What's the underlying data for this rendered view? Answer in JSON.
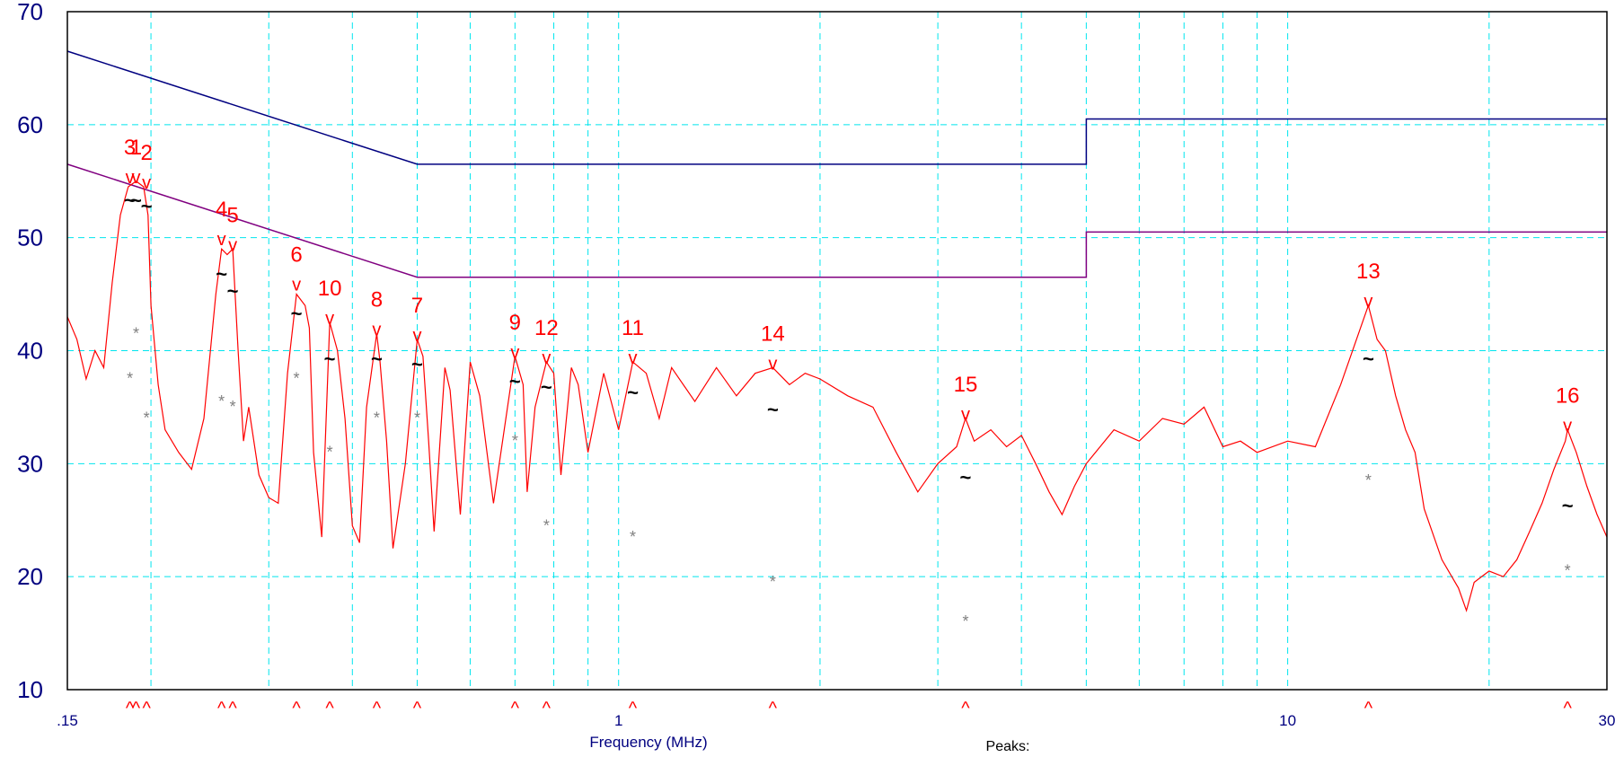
{
  "chart_data": {
    "type": "line",
    "xscale": "log",
    "xlim": [
      0.15,
      30
    ],
    "ylim": [
      10,
      70
    ],
    "xlabel": "Frequency (MHz)",
    "ylabel": "",
    "footer_label": "Peaks:",
    "y_ticks": [
      "10",
      "20",
      "30",
      "40",
      "50",
      "60",
      "70"
    ],
    "x_ticks": [
      {
        "value": 0.15,
        "label": ".15"
      },
      {
        "value": 1,
        "label": "1"
      },
      {
        "value": 10,
        "label": "10"
      },
      {
        "value": 30,
        "label": "30"
      }
    ],
    "grid": true,
    "limit_lines": [
      {
        "color": "#000080",
        "points": [
          [
            0.15,
            66.5
          ],
          [
            0.5,
            56.5
          ],
          [
            5,
            56.5
          ],
          [
            5,
            60.5
          ],
          [
            30,
            60.5
          ]
        ]
      },
      {
        "color": "#800080",
        "points": [
          [
            0.15,
            56.5
          ],
          [
            0.5,
            46.5
          ],
          [
            5,
            46.5
          ],
          [
            5,
            50.5
          ],
          [
            30,
            50.5
          ]
        ]
      }
    ],
    "trace_color": "#ff0000",
    "peaks": [
      {
        "label": "1",
        "f": 0.19,
        "peak": 55,
        "qp": 53.5,
        "avg": 42
      },
      {
        "label": "2",
        "f": 0.197,
        "peak": 54.5,
        "qp": 53,
        "avg": 34.5
      },
      {
        "label": "3",
        "f": 0.186,
        "peak": 55,
        "qp": 53.5,
        "avg": 38
      },
      {
        "label": "4",
        "f": 0.255,
        "peak": 49.5,
        "qp": 47,
        "avg": 36
      },
      {
        "label": "5",
        "f": 0.265,
        "peak": 49,
        "qp": 45.5,
        "avg": 35.5
      },
      {
        "label": "6",
        "f": 0.33,
        "peak": 45.5,
        "qp": 43.5,
        "avg": 38
      },
      {
        "label": "7",
        "f": 0.5,
        "peak": 41,
        "qp": 39,
        "avg": 34.5
      },
      {
        "label": "8",
        "f": 0.435,
        "peak": 41.5,
        "qp": 39.5,
        "avg": 34.5
      },
      {
        "label": "9",
        "f": 0.7,
        "peak": 39.5,
        "qp": 37.5,
        "avg": 32.5
      },
      {
        "label": "10",
        "f": 0.37,
        "peak": 42.5,
        "qp": 39.5,
        "avg": 31.5
      },
      {
        "label": "11",
        "f": 1.05,
        "peak": 39,
        "qp": 36.5,
        "avg": 24
      },
      {
        "label": "12",
        "f": 0.78,
        "peak": 39,
        "qp": 37,
        "avg": 25
      },
      {
        "label": "13",
        "f": 13.2,
        "peak": 44,
        "qp": 39.5,
        "avg": 29
      },
      {
        "label": "14",
        "f": 1.7,
        "peak": 38.5,
        "qp": 35,
        "avg": 20
      },
      {
        "label": "15",
        "f": 3.3,
        "peak": 34,
        "qp": 29,
        "avg": 16.5
      },
      {
        "label": "16",
        "f": 26.2,
        "peak": 33,
        "qp": 26.5,
        "avg": 21
      }
    ],
    "trace": [
      [
        0.15,
        43
      ],
      [
        0.155,
        41
      ],
      [
        0.16,
        37.5
      ],
      [
        0.165,
        40
      ],
      [
        0.17,
        38.5
      ],
      [
        0.175,
        46
      ],
      [
        0.18,
        52
      ],
      [
        0.185,
        54.5
      ],
      [
        0.19,
        55
      ],
      [
        0.195,
        54.5
      ],
      [
        0.198,
        52
      ],
      [
        0.2,
        44
      ],
      [
        0.205,
        37
      ],
      [
        0.21,
        33
      ],
      [
        0.22,
        31
      ],
      [
        0.23,
        29.5
      ],
      [
        0.24,
        34
      ],
      [
        0.25,
        45
      ],
      [
        0.255,
        49
      ],
      [
        0.26,
        48.5
      ],
      [
        0.265,
        49
      ],
      [
        0.27,
        40
      ],
      [
        0.275,
        32
      ],
      [
        0.28,
        35
      ],
      [
        0.29,
        29
      ],
      [
        0.3,
        27
      ],
      [
        0.31,
        26.5
      ],
      [
        0.32,
        38
      ],
      [
        0.33,
        45
      ],
      [
        0.34,
        44
      ],
      [
        0.345,
        42
      ],
      [
        0.35,
        31
      ],
      [
        0.36,
        23.5
      ],
      [
        0.37,
        42.5
      ],
      [
        0.38,
        40
      ],
      [
        0.39,
        34
      ],
      [
        0.4,
        24.5
      ],
      [
        0.41,
        23
      ],
      [
        0.42,
        35
      ],
      [
        0.435,
        41.5
      ],
      [
        0.44,
        39
      ],
      [
        0.45,
        32
      ],
      [
        0.46,
        22.5
      ],
      [
        0.48,
        30
      ],
      [
        0.5,
        41
      ],
      [
        0.51,
        39.5
      ],
      [
        0.52,
        32
      ],
      [
        0.53,
        24
      ],
      [
        0.55,
        38.5
      ],
      [
        0.56,
        36.5
      ],
      [
        0.58,
        25.5
      ],
      [
        0.6,
        39
      ],
      [
        0.62,
        36
      ],
      [
        0.65,
        26.5
      ],
      [
        0.7,
        39.5
      ],
      [
        0.72,
        37
      ],
      [
        0.73,
        27.5
      ],
      [
        0.75,
        35
      ],
      [
        0.78,
        39
      ],
      [
        0.8,
        38
      ],
      [
        0.82,
        29
      ],
      [
        0.85,
        38.5
      ],
      [
        0.87,
        37
      ],
      [
        0.9,
        31
      ],
      [
        0.95,
        38
      ],
      [
        1,
        33
      ],
      [
        1.05,
        39
      ],
      [
        1.1,
        38
      ],
      [
        1.15,
        34
      ],
      [
        1.2,
        38.5
      ],
      [
        1.3,
        35.5
      ],
      [
        1.4,
        38.5
      ],
      [
        1.5,
        36
      ],
      [
        1.6,
        38
      ],
      [
        1.7,
        38.5
      ],
      [
        1.8,
        37
      ],
      [
        1.9,
        38
      ],
      [
        2,
        37.5
      ],
      [
        2.2,
        36
      ],
      [
        2.4,
        35
      ],
      [
        2.6,
        31
      ],
      [
        2.8,
        27.5
      ],
      [
        3,
        30
      ],
      [
        3.2,
        31.5
      ],
      [
        3.3,
        34
      ],
      [
        3.4,
        32
      ],
      [
        3.6,
        33
      ],
      [
        3.8,
        31.5
      ],
      [
        4,
        32.5
      ],
      [
        4.2,
        30
      ],
      [
        4.4,
        27.5
      ],
      [
        4.6,
        25.5
      ],
      [
        4.8,
        28
      ],
      [
        5,
        30
      ],
      [
        5.5,
        33
      ],
      [
        6,
        32
      ],
      [
        6.5,
        34
      ],
      [
        7,
        33.5
      ],
      [
        7.5,
        35
      ],
      [
        8,
        31.5
      ],
      [
        8.5,
        32
      ],
      [
        9,
        31
      ],
      [
        10,
        32
      ],
      [
        11,
        31.5
      ],
      [
        12,
        37
      ],
      [
        13.2,
        44
      ],
      [
        13.6,
        41
      ],
      [
        14,
        40
      ],
      [
        14.5,
        36
      ],
      [
        15,
        33
      ],
      [
        15.5,
        31
      ],
      [
        16,
        26
      ],
      [
        17,
        21.5
      ],
      [
        18,
        19
      ],
      [
        18.5,
        17
      ],
      [
        19,
        19.5
      ],
      [
        20,
        20.5
      ],
      [
        21,
        20
      ],
      [
        22,
        21.5
      ],
      [
        23,
        24
      ],
      [
        24,
        26.5
      ],
      [
        25,
        29.5
      ],
      [
        26,
        32
      ],
      [
        26.2,
        33
      ],
      [
        27,
        31
      ],
      [
        28,
        28
      ],
      [
        29,
        25.5
      ],
      [
        30,
        23.5
      ]
    ]
  }
}
